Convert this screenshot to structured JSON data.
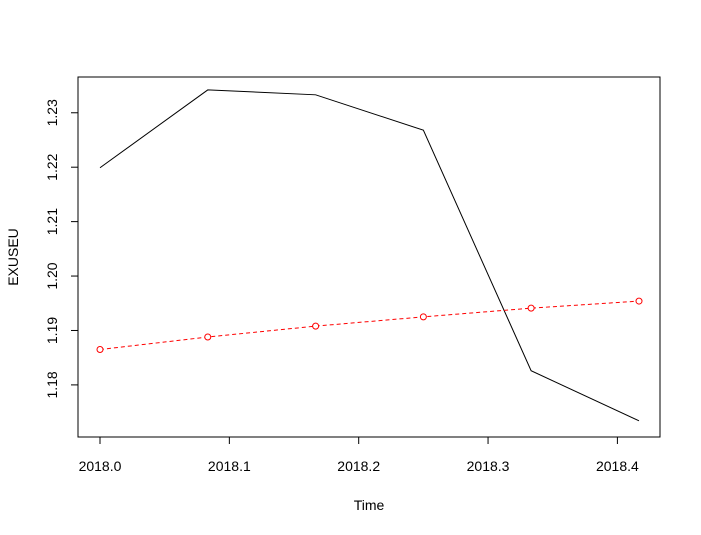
{
  "chart_data": {
    "type": "line",
    "title": "",
    "xlabel": "Time",
    "ylabel": "EXUSEU",
    "x": [
      2018.0,
      2018.0833,
      2018.1667,
      2018.25,
      2018.3333,
      2018.4167
    ],
    "xlim": [
      2018.0,
      2018.4167
    ],
    "ylim": [
      1.173,
      1.234
    ],
    "x_ticks": [
      2018.0,
      2018.1,
      2018.2,
      2018.3,
      2018.4
    ],
    "x_tick_labels": [
      "2018.0",
      "2018.1",
      "2018.2",
      "2018.3",
      "2018.4"
    ],
    "y_ticks": [
      1.18,
      1.19,
      1.2,
      1.21,
      1.22,
      1.23
    ],
    "y_tick_labels": [
      "1.18",
      "1.19",
      "1.20",
      "1.21",
      "1.22",
      "1.23"
    ],
    "grid": false,
    "legend": "none",
    "series": [
      {
        "values": [
          1.2199,
          1.2342,
          1.2333,
          1.2268,
          1.1826,
          1.1734
        ],
        "color": "#000000",
        "style": "solid",
        "markers": false
      },
      {
        "values": [
          1.1865,
          1.1888,
          1.1908,
          1.1925,
          1.1941,
          1.1954
        ],
        "color": "#ff0000",
        "style": "dashed",
        "markers": true
      }
    ]
  }
}
